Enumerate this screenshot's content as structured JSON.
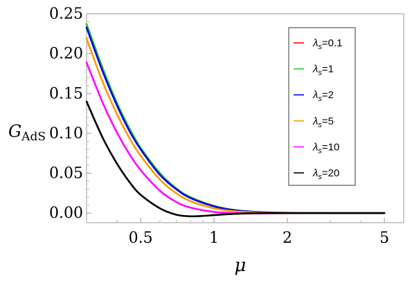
{
  "chart_data": {
    "type": "line",
    "xlabel": "μ",
    "ylabel": "G",
    "ylabel_sub": "AdS",
    "x_scale": "log",
    "xlim": [
      0.3,
      6.0
    ],
    "ylim": [
      -0.012,
      0.25
    ],
    "x_ticks": [
      0.5,
      1,
      2,
      5
    ],
    "x_tick_labels": [
      "0.5",
      "1",
      "2",
      "5"
    ],
    "y_ticks": [
      0.0,
      0.05,
      0.1,
      0.15,
      0.2,
      0.25
    ],
    "y_tick_labels": [
      "0.00",
      "0.05",
      "0.10",
      "0.15",
      "0.20",
      "0.25"
    ],
    "grid": false,
    "legend_position": "top-right",
    "legend_symbol": "λ",
    "series": [
      {
        "name": "λs=0.1",
        "label_value": "0.1",
        "color": "#ff0000",
        "x": [
          0.3,
          0.35,
          0.4,
          0.45,
          0.5,
          0.6,
          0.7,
          0.8,
          1.0,
          1.2,
          1.5,
          2.0,
          3.0,
          5.0
        ],
        "y": [
          0.237,
          0.181,
          0.138,
          0.106,
          0.082,
          0.05,
          0.031,
          0.02,
          0.009,
          0.004,
          0.0015,
          0.0004,
          0.0,
          0.0
        ]
      },
      {
        "name": "λs=1",
        "label_value": "1",
        "color": "#22cc22",
        "x": [
          0.3,
          0.35,
          0.4,
          0.45,
          0.5,
          0.6,
          0.7,
          0.8,
          1.0,
          1.2,
          1.5,
          2.0,
          3.0,
          5.0
        ],
        "y": [
          0.237,
          0.181,
          0.138,
          0.106,
          0.082,
          0.05,
          0.031,
          0.02,
          0.009,
          0.004,
          0.0015,
          0.0004,
          0.0,
          0.0
        ]
      },
      {
        "name": "λs=2",
        "label_value": "2",
        "color": "#0000ee",
        "x": [
          0.3,
          0.35,
          0.4,
          0.45,
          0.5,
          0.6,
          0.7,
          0.8,
          1.0,
          1.2,
          1.5,
          2.0,
          3.0,
          5.0
        ],
        "y": [
          0.233,
          0.177,
          0.135,
          0.103,
          0.08,
          0.048,
          0.03,
          0.019,
          0.0085,
          0.0038,
          0.0013,
          0.0003,
          0.0,
          0.0
        ]
      },
      {
        "name": "λs=5",
        "label_value": "5",
        "color": "#ff9900",
        "x": [
          0.3,
          0.35,
          0.4,
          0.45,
          0.5,
          0.6,
          0.7,
          0.8,
          1.0,
          1.2,
          1.5,
          2.0,
          3.0,
          5.0
        ],
        "y": [
          0.219,
          0.164,
          0.124,
          0.094,
          0.072,
          0.042,
          0.025,
          0.015,
          0.006,
          0.0025,
          0.0008,
          0.0002,
          0.0,
          0.0
        ]
      },
      {
        "name": "λs=10",
        "label_value": "10",
        "color": "#ff00ff",
        "x": [
          0.3,
          0.35,
          0.4,
          0.45,
          0.5,
          0.6,
          0.7,
          0.8,
          1.0,
          1.2,
          1.5,
          2.0,
          3.0,
          5.0
        ],
        "y": [
          0.189,
          0.138,
          0.101,
          0.074,
          0.054,
          0.028,
          0.014,
          0.007,
          0.0015,
          0.0,
          -0.0005,
          0.0,
          0.0,
          0.0
        ]
      },
      {
        "name": "λs=20",
        "label_value": "20",
        "color": "#000000",
        "x": [
          0.3,
          0.35,
          0.4,
          0.45,
          0.5,
          0.6,
          0.7,
          0.8,
          0.9,
          1.0,
          1.2,
          1.5,
          2.0,
          3.0,
          5.0
        ],
        "y": [
          0.14,
          0.094,
          0.062,
          0.039,
          0.023,
          0.006,
          -0.002,
          -0.004,
          -0.0035,
          -0.0025,
          -0.001,
          0.0,
          0.0,
          0.0,
          0.0
        ]
      }
    ]
  }
}
